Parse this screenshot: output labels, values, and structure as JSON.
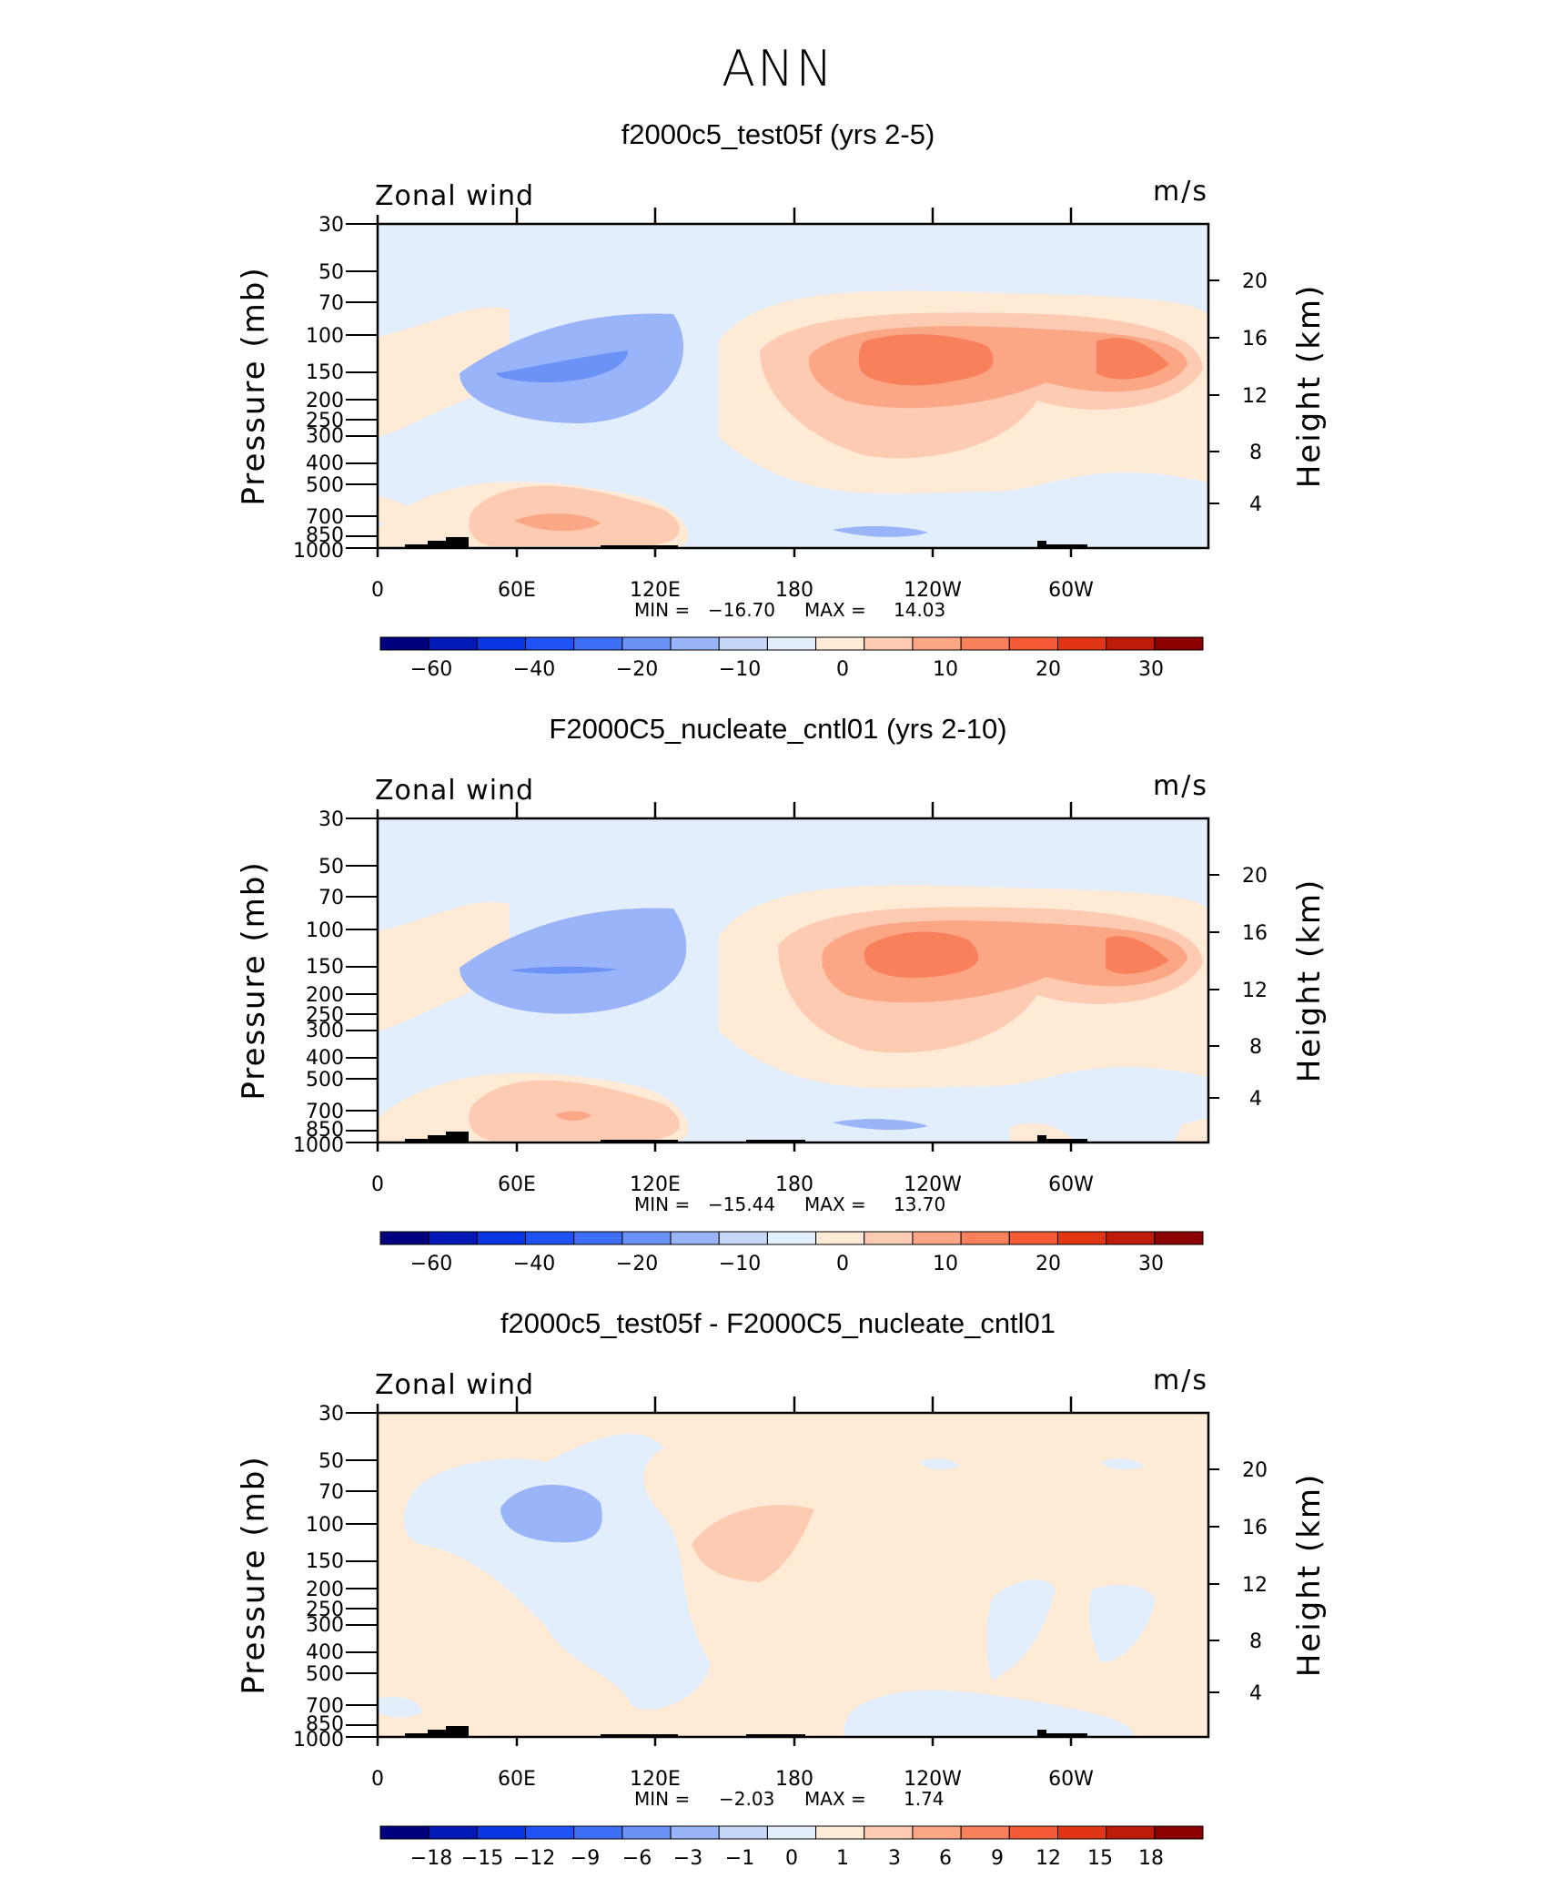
{
  "page_title": "ANN",
  "chart_data": [
    {
      "type": "heatmap",
      "title": "f2000c5_test05f (yrs 2-5)",
      "variable": "Zonal wind",
      "units": "m/s",
      "ylabel": "Pressure (mb)",
      "y2label": "Height (km)",
      "x_ticks": [
        "0",
        "60E",
        "120E",
        "180",
        "120W",
        "60W"
      ],
      "y_ticks": [
        "30",
        "50",
        "70",
        "100",
        "150",
        "200",
        "250",
        "300",
        "400",
        "500",
        "700",
        "850",
        "1000"
      ],
      "y2_ticks": [
        "20",
        "16",
        "12",
        "8",
        "4"
      ],
      "stats": {
        "min_label": "MIN =",
        "min": "−16.70",
        "max_label": "MAX =",
        "max": "14.03"
      },
      "colorbar_labels": [
        "−60",
        "−40",
        "−20",
        "−10",
        "0",
        "10",
        "20",
        "30"
      ],
      "levels": [
        -70,
        -60,
        -50,
        -40,
        -30,
        -20,
        -15,
        -10,
        -5,
        0,
        5,
        10,
        15,
        20,
        25,
        30
      ]
    },
    {
      "type": "heatmap",
      "title": "F2000C5_nucleate_cntl01 (yrs 2-10)",
      "variable": "Zonal wind",
      "units": "m/s",
      "ylabel": "Pressure (mb)",
      "y2label": "Height (km)",
      "x_ticks": [
        "0",
        "60E",
        "120E",
        "180",
        "120W",
        "60W"
      ],
      "y_ticks": [
        "30",
        "50",
        "70",
        "100",
        "150",
        "200",
        "250",
        "300",
        "400",
        "500",
        "700",
        "850",
        "1000"
      ],
      "y2_ticks": [
        "20",
        "16",
        "12",
        "8",
        "4"
      ],
      "stats": {
        "min_label": "MIN =",
        "min": "−15.44",
        "max_label": "MAX =",
        "max": "13.70"
      },
      "colorbar_labels": [
        "−60",
        "−40",
        "−20",
        "−10",
        "0",
        "10",
        "20",
        "30"
      ],
      "levels": [
        -70,
        -60,
        -50,
        -40,
        -30,
        -20,
        -15,
        -10,
        -5,
        0,
        5,
        10,
        15,
        20,
        25,
        30
      ]
    },
    {
      "type": "heatmap",
      "title": "f2000c5_test05f - F2000C5_nucleate_cntl01",
      "variable": "Zonal wind",
      "units": "m/s",
      "ylabel": "Pressure (mb)",
      "y2label": "Height (km)",
      "x_ticks": [
        "0",
        "60E",
        "120E",
        "180",
        "120W",
        "60W"
      ],
      "y_ticks": [
        "30",
        "50",
        "70",
        "100",
        "150",
        "200",
        "250",
        "300",
        "400",
        "500",
        "700",
        "850",
        "1000"
      ],
      "y2_ticks": [
        "20",
        "16",
        "12",
        "8",
        "4"
      ],
      "stats": {
        "min_label": "MIN =",
        "min": "−2.03",
        "max_label": "MAX =",
        "max": "1.74"
      },
      "colorbar_labels": [
        "−18",
        "−15",
        "−12",
        "−9",
        "−6",
        "−3",
        "−1",
        "0",
        "1",
        "3",
        "6",
        "9",
        "12",
        "15",
        "18"
      ],
      "levels": [
        -18,
        -15,
        -12,
        -9,
        -6,
        -3,
        -1,
        0,
        1,
        3,
        6,
        9,
        12,
        15,
        18
      ]
    }
  ],
  "palette": [
    "#00007f",
    "#0219b8",
    "#0a36e3",
    "#1f53f5",
    "#3f6ff7",
    "#6a92f7",
    "#99b4f8",
    "#c7d7fa",
    "#e3eefd",
    "#ffead6",
    "#fdcbb1",
    "#fba785",
    "#f8805b",
    "#f55b37",
    "#e13513",
    "#bd1c0a",
    "#8c0000"
  ]
}
